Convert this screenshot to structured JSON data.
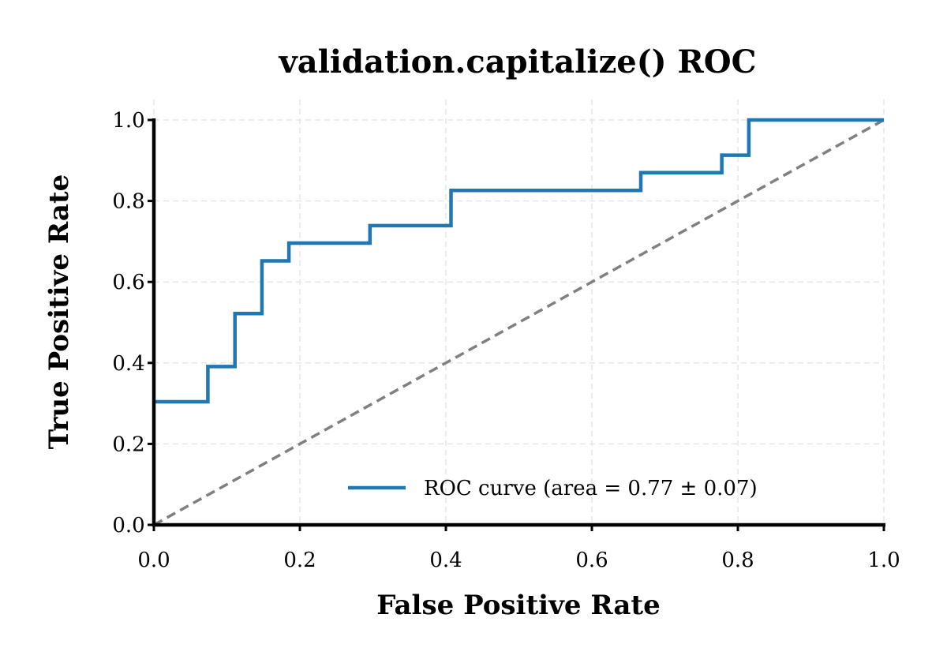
{
  "chart_data": {
    "type": "line",
    "title": "validation.capitalize() ROC",
    "xlabel": "False Positive Rate",
    "ylabel": "True Positive Rate",
    "xlim": [
      0.0,
      1.0
    ],
    "ylim": [
      0.0,
      1.0
    ],
    "xticks": [
      "0.0",
      "0.2",
      "0.4",
      "0.6",
      "0.8",
      "1.0"
    ],
    "yticks": [
      "0.0",
      "0.2",
      "0.4",
      "0.6",
      "0.8",
      "1.0"
    ],
    "grid": true,
    "legend_position": "lower-right",
    "series": [
      {
        "name": "ROC curve (area = 0.77  ± 0.07)",
        "style": "solid",
        "color": "#1f77b4",
        "x": [
          0.0,
          0.074,
          0.074,
          0.111,
          0.111,
          0.148,
          0.148,
          0.185,
          0.185,
          0.296,
          0.296,
          0.407,
          0.407,
          0.667,
          0.667,
          0.778,
          0.778,
          0.815,
          0.815,
          1.0
        ],
        "y": [
          0.304,
          0.304,
          0.391,
          0.391,
          0.522,
          0.522,
          0.652,
          0.652,
          0.696,
          0.696,
          0.739,
          0.739,
          0.826,
          0.826,
          0.87,
          0.87,
          0.913,
          0.913,
          1.0,
          1.0
        ]
      },
      {
        "style": "dashed",
        "color": "#808080",
        "x": [
          0.0,
          1.0
        ],
        "y": [
          0.0,
          1.0
        ]
      }
    ]
  }
}
